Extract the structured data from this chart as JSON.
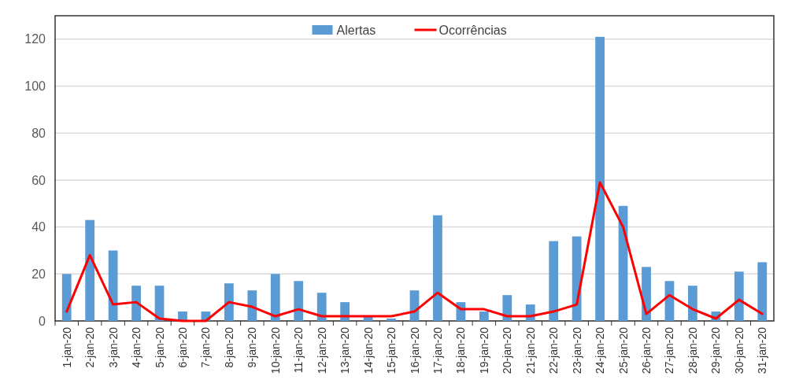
{
  "chart_data": {
    "type": "bar",
    "categories": [
      "1-jan-20",
      "2-jan-20",
      "3-jan-20",
      "4-jan-20",
      "5-jan-20",
      "6-jan-20",
      "7-jan-20",
      "8-jan-20",
      "9-jan-20",
      "10-jan-20",
      "11-jan-20",
      "12-jan-20",
      "13-jan-20",
      "14-jan-20",
      "15-jan-20",
      "16-jan-20",
      "17-jan-20",
      "18-jan-20",
      "19-jan-20",
      "20-jan-20",
      "21-jan-20",
      "22-jan-20",
      "23-jan-20",
      "24-jan-20",
      "25-jan-20",
      "26-jan-20",
      "27-jan-20",
      "28-jan-20",
      "29-jan-20",
      "30-jan-20",
      "31-jan-20"
    ],
    "series": [
      {
        "name": "Alertas",
        "color": "#5b9bd5",
        "values": [
          20,
          43,
          30,
          15,
          15,
          4,
          4,
          16,
          13,
          20,
          17,
          12,
          8,
          2,
          1,
          13,
          45,
          8,
          4,
          11,
          7,
          34,
          36,
          121,
          49,
          23,
          17,
          15,
          4,
          21,
          25
        ]
      },
      {
        "name": "Ocorrências",
        "type": "line",
        "color": "#ff0000",
        "values": [
          4,
          28,
          7,
          8,
          1,
          0,
          0,
          8,
          6,
          2,
          5,
          2,
          2,
          2,
          2,
          4,
          12,
          5,
          5,
          2,
          2,
          4,
          7,
          59,
          40,
          3,
          11,
          5,
          1,
          9,
          3
        ]
      }
    ],
    "ylim": [
      0,
      130
    ],
    "yticks": [
      0,
      20,
      40,
      60,
      80,
      100,
      120
    ],
    "grid": "y",
    "legend": "top",
    "marker": "none",
    "line_style": "solid"
  }
}
